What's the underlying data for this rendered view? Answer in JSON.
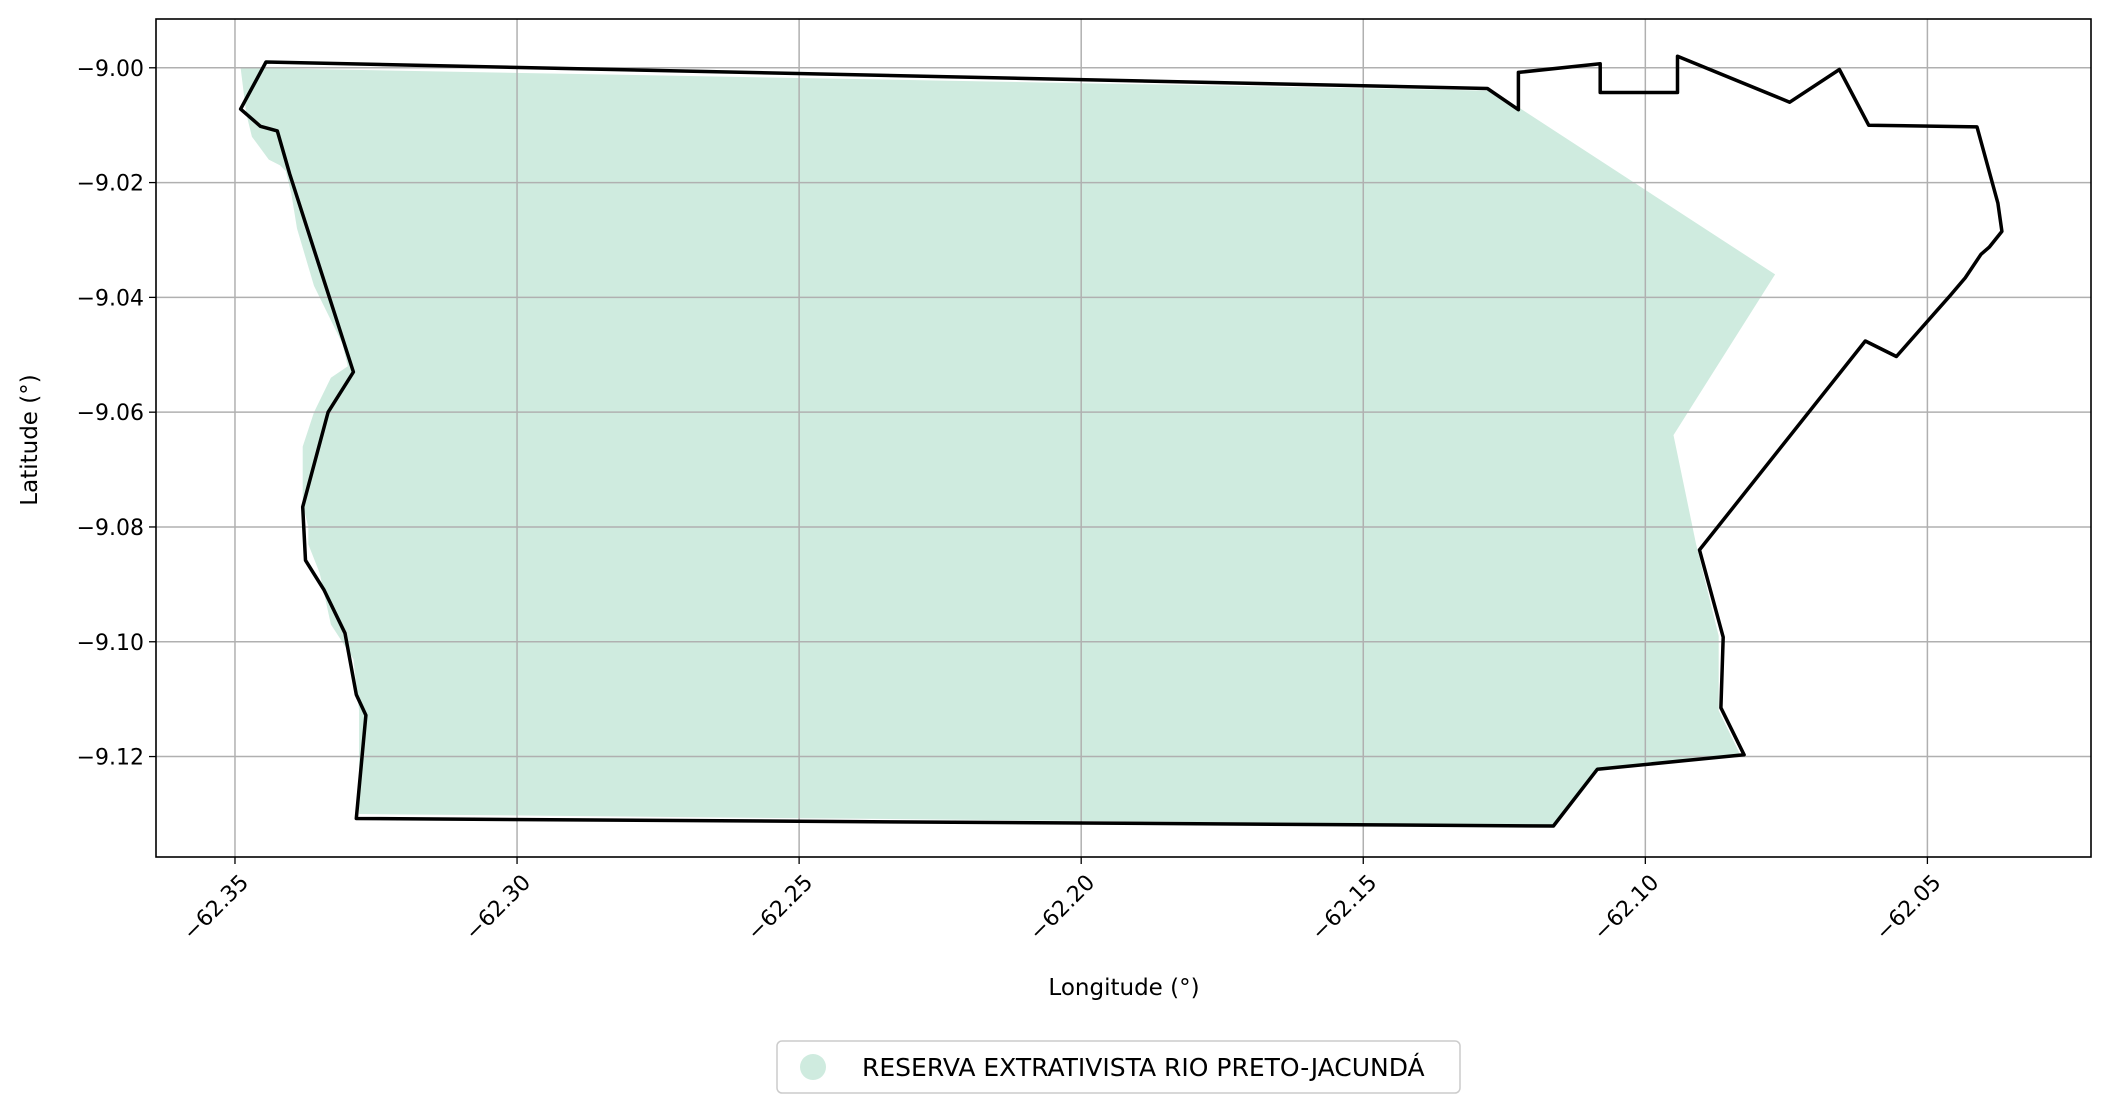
{
  "map": {
    "xlabel": "Longitude (°)",
    "ylabel": "Latitude (°)",
    "xlim": [
      -62.364,
      -62.021
    ],
    "ylim": [
      -9.1375,
      -8.9915
    ],
    "x_ticks": [
      {
        "value": -62.35,
        "label": "−62.35"
      },
      {
        "value": -62.3,
        "label": "−62.30"
      },
      {
        "value": -62.25,
        "label": "−62.25"
      },
      {
        "value": -62.2,
        "label": "−62.20"
      },
      {
        "value": -62.15,
        "label": "−62.15"
      },
      {
        "value": -62.1,
        "label": "−62.10"
      },
      {
        "value": -62.05,
        "label": "−62.05"
      }
    ],
    "y_ticks": [
      {
        "value": -9.0,
        "label": "−9.00"
      },
      {
        "value": -9.02,
        "label": "−9.02"
      },
      {
        "value": -9.04,
        "label": "−9.04"
      },
      {
        "value": -9.06,
        "label": "−9.06"
      },
      {
        "value": -9.08,
        "label": "−9.08"
      },
      {
        "value": -9.1,
        "label": "−9.10"
      },
      {
        "value": -9.12,
        "label": "−9.12"
      }
    ],
    "grid": true,
    "colors": {
      "fill": "#cfebdf",
      "outline": "#000000",
      "grid": "#b0b0b0"
    },
    "legend": {
      "position": "bottom-center",
      "label": "RESERVA EXTRATIVISTA RIO PRETO-JACUNDÁ"
    },
    "fill_polygon": [
      [
        -62.349,
        -9.0
      ],
      [
        -62.127,
        -9.004
      ],
      [
        -62.077,
        -9.036
      ],
      [
        -62.095,
        -9.064
      ],
      [
        -62.091,
        -9.083
      ],
      [
        -62.087,
        -9.099
      ],
      [
        -62.087,
        -9.112
      ],
      [
        -62.083,
        -9.12
      ],
      [
        -62.108,
        -9.122
      ],
      [
        -62.116,
        -9.132
      ],
      [
        -62.328,
        -9.13
      ],
      [
        -62.328,
        -9.112
      ],
      [
        -62.329,
        -9.103
      ],
      [
        -62.333,
        -9.097
      ],
      [
        -62.335,
        -9.088
      ],
      [
        -62.337,
        -9.083
      ],
      [
        -62.337,
        -9.08
      ],
      [
        -62.338,
        -9.076
      ],
      [
        -62.338,
        -9.066
      ],
      [
        -62.336,
        -9.06
      ],
      [
        -62.333,
        -9.054
      ],
      [
        -62.33,
        -9.052
      ],
      [
        -62.331,
        -9.048
      ],
      [
        -62.336,
        -9.038
      ],
      [
        -62.339,
        -9.028
      ],
      [
        -62.34,
        -9.022
      ],
      [
        -62.341,
        -9.018
      ],
      [
        -62.342,
        -9.017
      ],
      [
        -62.344,
        -9.016
      ],
      [
        -62.347,
        -9.012
      ],
      [
        -62.348,
        -9.008
      ],
      [
        -62.349,
        -9.0
      ]
    ],
    "outline_polygon": [
      [
        -62.3445,
        -8.999
      ],
      [
        -62.128,
        -9.0036
      ],
      [
        -62.1225,
        -9.0073
      ],
      [
        -62.1225,
        -9.0008
      ],
      [
        -62.108,
        -8.9993
      ],
      [
        -62.108,
        -9.0043
      ],
      [
        -62.0943,
        -9.0043
      ],
      [
        -62.0943,
        -8.998
      ],
      [
        -62.0744,
        -9.006
      ],
      [
        -62.0656,
        -9.0003
      ],
      [
        -62.0604,
        -9.01
      ],
      [
        -62.0412,
        -9.0103
      ],
      [
        -62.0375,
        -9.0236
      ],
      [
        -62.0368,
        -9.0285
      ],
      [
        -62.039,
        -9.0312
      ],
      [
        -62.0405,
        -9.0325
      ],
      [
        -62.0433,
        -9.0366
      ],
      [
        -62.046,
        -9.0397
      ],
      [
        -62.0485,
        -9.0425
      ],
      [
        -62.0555,
        -9.0503
      ],
      [
        -62.061,
        -9.0476
      ],
      [
        -62.0904,
        -9.084
      ],
      [
        -62.0862,
        -9.0992
      ],
      [
        -62.0866,
        -9.1115
      ],
      [
        -62.0825,
        -9.1197
      ],
      [
        -62.1085,
        -9.1222
      ],
      [
        -62.1163,
        -9.1321
      ],
      [
        -62.3285,
        -9.1308
      ],
      [
        -62.3268,
        -9.1128
      ],
      [
        -62.3285,
        -9.1092
      ],
      [
        -62.3305,
        -9.0985
      ],
      [
        -62.3342,
        -9.091
      ],
      [
        -62.3375,
        -9.0858
      ],
      [
        -62.338,
        -9.0765
      ],
      [
        -62.3335,
        -9.06
      ],
      [
        -62.329,
        -9.053
      ],
      [
        -62.3403,
        -9.0185
      ],
      [
        -62.3425,
        -9.011
      ],
      [
        -62.3455,
        -9.0102
      ],
      [
        -62.349,
        -9.0072
      ],
      [
        -62.3445,
        -8.999
      ]
    ]
  }
}
